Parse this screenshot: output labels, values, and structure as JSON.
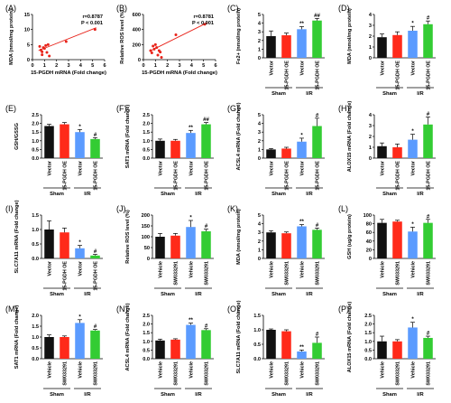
{
  "colors": {
    "black": "#111111",
    "red": "#ff2a1a",
    "blue": "#5b9bff",
    "green": "#33cc33",
    "line": "#e8231a",
    "pt": "#e8231a"
  },
  "chart_data": [
    {
      "id": "A",
      "panel": "(A)",
      "type": "scatter",
      "ylabel": "MDA (nmol/mg protein)",
      "xlabel": "15-PGDH mRNA (Fold change)",
      "xlim": [
        0,
        6
      ],
      "ylim": [
        0,
        15
      ],
      "xticks": [
        "0",
        "1",
        "2",
        "3",
        "4",
        "5",
        "6"
      ],
      "yticks": [
        "0",
        "5",
        "10",
        "15"
      ],
      "annotation": [
        "r=0.8787",
        "P < 0.001"
      ],
      "points": [
        [
          0.6,
          4.4
        ],
        [
          0.7,
          3.2
        ],
        [
          0.8,
          2.6
        ],
        [
          0.9,
          4.0
        ],
        [
          1.0,
          3.7
        ],
        [
          1.1,
          4.7
        ],
        [
          1.2,
          2.4
        ],
        [
          1.3,
          5.0
        ],
        [
          1.4,
          1.2
        ],
        [
          0.8,
          1.6
        ],
        [
          2.8,
          6.0
        ],
        [
          5.2,
          10.0
        ]
      ],
      "fit": [
        [
          0.5,
          3.0
        ],
        [
          5.3,
          10.6
        ]
      ]
    },
    {
      "id": "B",
      "panel": "(B)",
      "type": "scatter",
      "ylabel": "Relative ROS level (%)",
      "xlabel": "15-PGDH mRNA (Fold change)",
      "xlim": [
        0,
        6
      ],
      "ylim": [
        0,
        600
      ],
      "xticks": [
        "0",
        "1",
        "2",
        "3",
        "4",
        "5",
        "6"
      ],
      "yticks": [
        "0",
        "200",
        "400",
        "600"
      ],
      "annotation": [
        "r=0.8781",
        "P < 0.001"
      ],
      "points": [
        [
          0.6,
          120
        ],
        [
          0.7,
          90
        ],
        [
          0.8,
          180
        ],
        [
          0.9,
          140
        ],
        [
          1.0,
          200
        ],
        [
          1.1,
          160
        ],
        [
          1.2,
          60
        ],
        [
          1.3,
          120
        ],
        [
          1.4,
          100
        ],
        [
          1.5,
          30
        ],
        [
          2.7,
          330
        ],
        [
          5.1,
          470
        ]
      ],
      "fit": [
        [
          0.5,
          110
        ],
        [
          5.3,
          490
        ]
      ]
    },
    {
      "id": "C",
      "panel": "(C)",
      "type": "bar",
      "ylabel": "Fe2+ (nmol/mg protein)",
      "ylim": [
        0,
        5
      ],
      "yticks": [
        "0",
        "1",
        "2",
        "3",
        "4",
        "5"
      ],
      "categories": [
        "Vector",
        "15-PGDH OE",
        "Vector",
        "15-PGDH OE"
      ],
      "groups": [
        "Sham",
        "I/R"
      ],
      "values": [
        2.5,
        2.6,
        3.3,
        4.3
      ],
      "errors": [
        0.6,
        0.25,
        0.3,
        0.25
      ],
      "sig": [
        "",
        "",
        "**",
        "##"
      ]
    },
    {
      "id": "D",
      "panel": "(D)",
      "type": "bar",
      "ylabel": "MDA (nmol/mg protein)",
      "ylim": [
        0,
        4
      ],
      "yticks": [
        "0",
        "1",
        "2",
        "3",
        "4"
      ],
      "categories": [
        "Vector",
        "15-PGDH OE",
        "Vector",
        "15-PGDH OE"
      ],
      "groups": [
        "Sham",
        "I/R"
      ],
      "values": [
        1.9,
        2.1,
        2.5,
        3.1
      ],
      "errors": [
        0.3,
        0.3,
        0.4,
        0.3
      ],
      "sig": [
        "",
        "",
        "*",
        "#"
      ]
    },
    {
      "id": "E",
      "panel": "(E)",
      "type": "bar",
      "ylabel": "GSH/GSSG",
      "ylim": [
        0,
        2.5
      ],
      "yticks": [
        "0.0",
        "0.5",
        "1.0",
        "1.5",
        "2.0",
        "2.5"
      ],
      "categories": [
        "Vector",
        "15-PGDH OE",
        "Vector",
        "15-PGDH OE"
      ],
      "groups": [
        "Sham",
        "I/R"
      ],
      "values": [
        1.85,
        1.95,
        1.5,
        1.1
      ],
      "errors": [
        0.1,
        0.1,
        0.15,
        0.08
      ],
      "sig": [
        "",
        "",
        "*",
        "#"
      ]
    },
    {
      "id": "F",
      "panel": "(F)",
      "type": "bar",
      "ylabel": "SAT1 mRNA (Fold change)",
      "ylim": [
        0,
        2.5
      ],
      "yticks": [
        "0.0",
        "0.5",
        "1.0",
        "1.5",
        "2.0",
        "2.5"
      ],
      "categories": [
        "Vector",
        "15-PGDH OE",
        "Vector",
        "15-PGDH OE"
      ],
      "groups": [
        "Sham",
        "I/R"
      ],
      "values": [
        1.0,
        1.0,
        1.45,
        1.95
      ],
      "errors": [
        0.1,
        0.08,
        0.15,
        0.1
      ],
      "sig": [
        "",
        "",
        "**",
        "##"
      ]
    },
    {
      "id": "G",
      "panel": "(G)",
      "type": "bar",
      "ylabel": "ACSL4 mRNA (Fold change)",
      "ylim": [
        0,
        5
      ],
      "yticks": [
        "0",
        "1",
        "2",
        "3",
        "4",
        "5"
      ],
      "categories": [
        "Vector",
        "15-PGDH OE",
        "Vector",
        "15-PGDH OE"
      ],
      "groups": [
        "Sham",
        "I/R"
      ],
      "values": [
        1.0,
        1.1,
        1.9,
        3.7
      ],
      "errors": [
        0.1,
        0.15,
        0.4,
        0.9
      ],
      "sig": [
        "",
        "",
        "*",
        "#"
      ]
    },
    {
      "id": "H",
      "panel": "(H)",
      "type": "bar",
      "ylabel": "ALOX15 mRNA (Fold change)",
      "ylim": [
        0,
        4
      ],
      "yticks": [
        "0",
        "1",
        "2",
        "3",
        "4"
      ],
      "categories": [
        "Vector",
        "15-PGDH OE",
        "Vector",
        "15-PGDH OE"
      ],
      "groups": [
        "Sham",
        "I/R"
      ],
      "values": [
        1.1,
        1.0,
        1.7,
        3.1
      ],
      "errors": [
        0.3,
        0.3,
        0.5,
        0.7
      ],
      "sig": [
        "",
        "",
        "*",
        "#"
      ]
    },
    {
      "id": "I",
      "panel": "(I)",
      "type": "bar",
      "ylabel": "SLC7A11 mRNA (Fold change)",
      "ylim": [
        0,
        1.5
      ],
      "yticks": [
        "0.0",
        "0.5",
        "1.0",
        "1.5"
      ],
      "categories": [
        "Vector",
        "15-PGDH OE",
        "Vector",
        "15-PGDH OE"
      ],
      "groups": [
        "Sham",
        "I/R"
      ],
      "values": [
        1.0,
        0.9,
        0.35,
        0.1
      ],
      "errors": [
        0.3,
        0.15,
        0.1,
        0.04
      ],
      "sig": [
        "",
        "",
        "*",
        "#"
      ]
    },
    {
      "id": "J",
      "panel": "(J)",
      "type": "bar",
      "ylabel": "Relative ROS level (%)",
      "ylim": [
        0,
        200
      ],
      "yticks": [
        "0",
        "50",
        "100",
        "150",
        "200"
      ],
      "categories": [
        "Vehicle",
        "SW033291",
        "Vehicle",
        "SW033291"
      ],
      "groups": [
        "Sham",
        "I/R"
      ],
      "values": [
        100,
        105,
        145,
        125
      ],
      "errors": [
        15,
        10,
        30,
        10
      ],
      "sig": [
        "",
        "",
        "*",
        "#"
      ]
    },
    {
      "id": "K",
      "panel": "(K)",
      "type": "bar",
      "ylabel": "MDA (nmol/mg protein)",
      "ylim": [
        0,
        5
      ],
      "yticks": [
        "0",
        "1",
        "2",
        "3",
        "4",
        "5"
      ],
      "categories": [
        "Vehicle",
        "SW033291",
        "Vehicle",
        "SW033291"
      ],
      "groups": [
        "Sham",
        "I/R"
      ],
      "values": [
        3.0,
        2.9,
        3.7,
        3.3
      ],
      "errors": [
        0.2,
        0.15,
        0.2,
        0.2
      ],
      "sig": [
        "",
        "",
        "**",
        "#"
      ]
    },
    {
      "id": "L",
      "panel": "(L)",
      "type": "bar",
      "ylabel": "GSH (ug/g protein)",
      "ylim": [
        0,
        100
      ],
      "yticks": [
        "0",
        "20",
        "40",
        "60",
        "80",
        "100"
      ],
      "categories": [
        "Vehicle",
        "SW033291",
        "Vehicle",
        "SW033291"
      ],
      "groups": [
        "Sham",
        "I/R"
      ],
      "values": [
        82,
        85,
        62,
        82
      ],
      "errors": [
        8,
        3,
        10,
        8
      ],
      "sig": [
        "",
        "",
        "*",
        "#"
      ]
    },
    {
      "id": "M",
      "panel": "(M)",
      "type": "bar",
      "ylabel": "SAT1 mRNA (Fold change)",
      "ylim": [
        0,
        2.0
      ],
      "yticks": [
        "0.0",
        "0.5",
        "1.0",
        "1.5",
        "2.0"
      ],
      "categories": [
        "Vehicle",
        "SW033291",
        "Vehicle",
        "SW033291"
      ],
      "groups": [
        "Sham",
        "I/R"
      ],
      "values": [
        1.0,
        1.0,
        1.65,
        1.3
      ],
      "errors": [
        0.1,
        0.05,
        0.15,
        0.05
      ],
      "sig": [
        "",
        "",
        "*",
        "#"
      ]
    },
    {
      "id": "N",
      "panel": "(N)",
      "type": "bar",
      "ylabel": "ACSL4 mRNA (Fold change)",
      "ylim": [
        0,
        2.5
      ],
      "yticks": [
        "0.0",
        "0.5",
        "1.0",
        "1.5",
        "2.0",
        "2.5"
      ],
      "categories": [
        "Vehicle",
        "SW033291",
        "Vehicle",
        "SW033291"
      ],
      "groups": [
        "Sham",
        "I/R"
      ],
      "values": [
        1.05,
        1.1,
        1.95,
        1.65
      ],
      "errors": [
        0.08,
        0.05,
        0.1,
        0.08
      ],
      "sig": [
        "",
        "",
        "**",
        "#"
      ]
    },
    {
      "id": "O",
      "panel": "(O)",
      "type": "bar",
      "ylabel": "SLC7A11 mRNA (Fold change)",
      "ylim": [
        0,
        1.5
      ],
      "yticks": [
        "0.0",
        "0.5",
        "1.0",
        "1.5"
      ],
      "categories": [
        "Vehicle",
        "SW033291",
        "Vehicle",
        "SW033291"
      ],
      "groups": [
        "Sham",
        "I/R"
      ],
      "values": [
        1.0,
        0.95,
        0.25,
        0.55
      ],
      "errors": [
        0.03,
        0.05,
        0.05,
        0.2
      ],
      "sig": [
        "",
        "",
        "**",
        "#"
      ]
    },
    {
      "id": "P",
      "panel": "(P)",
      "type": "bar",
      "ylabel": "ALOX15 mRNA (Fold change)",
      "ylim": [
        0,
        2.5
      ],
      "yticks": [
        "0.0",
        "0.5",
        "1.0",
        "1.5",
        "2.0",
        "2.5"
      ],
      "categories": [
        "Vehicle",
        "SW033291",
        "Vehicle",
        "SW033291"
      ],
      "groups": [
        "Sham",
        "I/R"
      ],
      "values": [
        1.0,
        1.0,
        1.8,
        1.2
      ],
      "errors": [
        0.3,
        0.1,
        0.3,
        0.1
      ],
      "sig": [
        "",
        "",
        "*",
        "#"
      ]
    }
  ]
}
